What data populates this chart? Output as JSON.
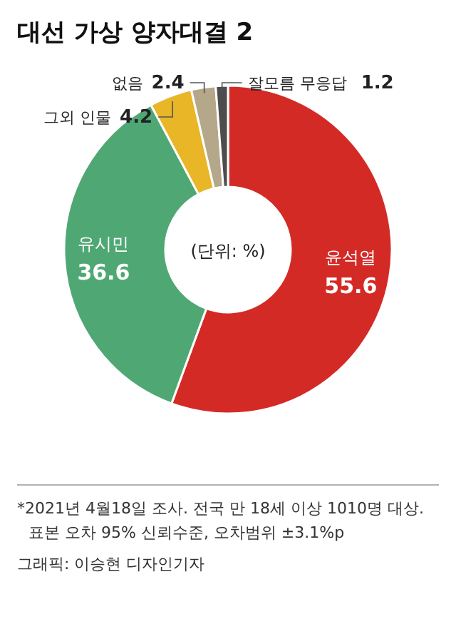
{
  "chart_data": {
    "type": "donut",
    "title": "대선 가상 양자대결 2",
    "categories": [
      "윤석열",
      "유시민",
      "그외 인물",
      "없음",
      "잘모름 무응답"
    ],
    "values": [
      55.6,
      36.6,
      4.2,
      2.4,
      1.2
    ],
    "colors": [
      "#d42a26",
      "#4fa874",
      "#e8b626",
      "#b5a78a",
      "#4d4d4d"
    ],
    "data_labels": true,
    "annotations": [
      "(단위: %)",
      "*2021년 4월18일 조사. 전국 만 18세 이상 1010명 대상.",
      "표본 오차 95% 신뢰수준, 오차범위 ±3.1%p",
      "그래픽: 이승현 디자인기자"
    ]
  }
}
